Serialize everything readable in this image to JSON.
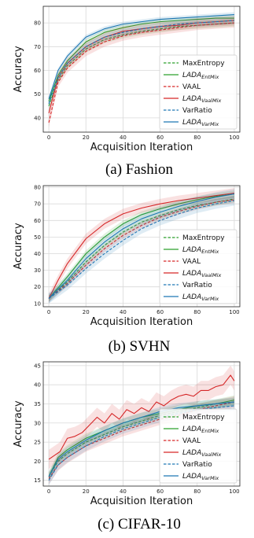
{
  "chart_data": [
    {
      "type": "line",
      "caption": "(a) Fashion",
      "xlabel": "Acquisition Iteration",
      "ylabel": "Accuracy",
      "xlim": [
        -3,
        103
      ],
      "ylim": [
        34,
        87
      ],
      "xticks": [
        0,
        20,
        40,
        60,
        80,
        100
      ],
      "yticks": [
        40,
        50,
        60,
        70,
        80
      ],
      "grid": true,
      "legend_position": "lower-right",
      "series": [
        {
          "name": "MaxEntropy",
          "tex": [
            "MaxEntropy",
            ""
          ],
          "color": "#2ca02c",
          "dash": true,
          "x": [
            0,
            5,
            10,
            20,
            30,
            40,
            50,
            60,
            70,
            80,
            90,
            100
          ],
          "y": [
            45,
            56,
            62,
            69,
            73,
            75,
            76.5,
            77.5,
            78.5,
            79,
            79.5,
            80
          ],
          "band": 1.5
        },
        {
          "name": "LADA_EntMix",
          "tex": [
            "LADA",
            "EntMix"
          ],
          "color": "#2ca02c",
          "dash": false,
          "x": [
            0,
            5,
            10,
            20,
            30,
            40,
            50,
            60,
            70,
            80,
            90,
            100
          ],
          "y": [
            47,
            58,
            64,
            72,
            76,
            78,
            79.5,
            80.5,
            81,
            81.5,
            82,
            82
          ],
          "band": 1.2
        },
        {
          "name": "VAAL",
          "tex": [
            "VAAL",
            ""
          ],
          "color": "#d62728",
          "dash": true,
          "x": [
            0,
            5,
            10,
            20,
            30,
            40,
            50,
            60,
            70,
            80,
            90,
            100
          ],
          "y": [
            38,
            55,
            61,
            68,
            72,
            74.5,
            76,
            77,
            78,
            79,
            79.5,
            80
          ],
          "band": 2
        },
        {
          "name": "LADA_VaalMix",
          "tex": [
            "LADA",
            "VaalMix"
          ],
          "color": "#d62728",
          "dash": false,
          "x": [
            0,
            5,
            10,
            20,
            30,
            40,
            50,
            60,
            70,
            80,
            90,
            100
          ],
          "y": [
            42,
            57,
            63,
            70,
            74,
            76.5,
            77.5,
            78.5,
            79,
            80,
            80.5,
            81
          ],
          "band": 2
        },
        {
          "name": "VarRatio",
          "tex": [
            "VarRatio",
            ""
          ],
          "color": "#1f77b4",
          "dash": true,
          "x": [
            0,
            5,
            10,
            20,
            30,
            40,
            50,
            60,
            70,
            80,
            90,
            100
          ],
          "y": [
            46,
            57,
            63,
            70,
            74,
            76,
            77.5,
            78.5,
            79.5,
            80,
            80.5,
            81
          ],
          "band": 1.5
        },
        {
          "name": "LADA_VarMix",
          "tex": [
            "LADA",
            "VarMix"
          ],
          "color": "#1f77b4",
          "dash": false,
          "x": [
            0,
            5,
            10,
            20,
            30,
            40,
            50,
            60,
            70,
            80,
            90,
            100
          ],
          "y": [
            48,
            60,
            66,
            74,
            77.5,
            79.5,
            80.5,
            81.5,
            82,
            82.5,
            83,
            83.5
          ],
          "band": 1
        }
      ]
    },
    {
      "type": "line",
      "caption": "(b) SVHN",
      "xlabel": "Acquisition Iteration",
      "ylabel": "Accuracy",
      "xlim": [
        -3,
        103
      ],
      "ylim": [
        8,
        81
      ],
      "xticks": [
        0,
        20,
        40,
        60,
        80,
        100
      ],
      "yticks": [
        10,
        20,
        30,
        40,
        50,
        60,
        70,
        80
      ],
      "grid": true,
      "legend_position": "lower-right",
      "series": [
        {
          "name": "MaxEntropy",
          "tex": [
            "MaxEntropy",
            ""
          ],
          "color": "#2ca02c",
          "dash": true,
          "x": [
            0,
            10,
            20,
            30,
            40,
            50,
            60,
            70,
            80,
            90,
            100
          ],
          "y": [
            13,
            23,
            35,
            45,
            53,
            59,
            63,
            66.5,
            69,
            71,
            73
          ],
          "band": 2
        },
        {
          "name": "LADA_EntMix",
          "tex": [
            "LADA",
            "EntMix"
          ],
          "color": "#2ca02c",
          "dash": false,
          "x": [
            0,
            10,
            20,
            30,
            40,
            50,
            60,
            70,
            80,
            90,
            100
          ],
          "y": [
            13,
            26,
            40,
            50,
            58,
            63.5,
            67,
            70,
            72.5,
            74.5,
            76
          ],
          "band": 2
        },
        {
          "name": "VAAL",
          "tex": [
            "VAAL",
            ""
          ],
          "color": "#d62728",
          "dash": true,
          "x": [
            0,
            10,
            20,
            30,
            40,
            50,
            60,
            70,
            80,
            90,
            100
          ],
          "y": [
            13,
            22,
            33,
            43,
            51,
            57,
            62,
            65.5,
            68.5,
            71,
            72.5
          ],
          "band": 2
        },
        {
          "name": "LADA_VaalMix",
          "tex": [
            "LADA",
            "VaalMix"
          ],
          "color": "#d62728",
          "dash": false,
          "x": [
            0,
            5,
            10,
            20,
            30,
            40,
            50,
            60,
            70,
            80,
            90,
            100
          ],
          "y": [
            13,
            24,
            34,
            49,
            58,
            64,
            67.5,
            70,
            72,
            73.5,
            75,
            76.5
          ],
          "band": 3
        },
        {
          "name": "VarRatio",
          "tex": [
            "VarRatio",
            ""
          ],
          "color": "#1f77b4",
          "dash": true,
          "x": [
            0,
            10,
            20,
            30,
            40,
            50,
            60,
            70,
            80,
            90,
            100
          ],
          "y": [
            13,
            21,
            31,
            40,
            48,
            55,
            60,
            64,
            67.5,
            70,
            72
          ],
          "band": 3
        },
        {
          "name": "LADA_VarMix",
          "tex": [
            "LADA",
            "VarMix"
          ],
          "color": "#1f77b4",
          "dash": false,
          "x": [
            0,
            10,
            20,
            30,
            40,
            50,
            60,
            70,
            80,
            90,
            100
          ],
          "y": [
            13,
            24,
            37,
            47,
            55,
            61,
            65,
            68.5,
            71.5,
            74,
            76
          ],
          "band": 3
        }
      ]
    },
    {
      "type": "line",
      "caption": "(c) CIFAR-10",
      "xlabel": "Acquisition Iteration",
      "ylabel": "Accuracy",
      "xlim": [
        -3,
        103
      ],
      "ylim": [
        13.5,
        46
      ],
      "xticks": [
        0,
        20,
        40,
        60,
        80,
        100
      ],
      "yticks": [
        15,
        20,
        25,
        30,
        35,
        40,
        45
      ],
      "grid": true,
      "legend_position": "lower-right",
      "series": [
        {
          "name": "MaxEntropy",
          "tex": [
            "MaxEntropy",
            ""
          ],
          "color": "#2ca02c",
          "dash": true,
          "x": [
            0,
            5,
            10,
            20,
            30,
            40,
            50,
            60,
            70,
            80,
            90,
            100
          ],
          "y": [
            16,
            20,
            22,
            25,
            27,
            29,
            30.5,
            32,
            33,
            34,
            35,
            35.5
          ],
          "band": 1
        },
        {
          "name": "LADA_EntMix",
          "tex": [
            "LADA",
            "EntMix"
          ],
          "color": "#2ca02c",
          "dash": false,
          "x": [
            0,
            5,
            10,
            20,
            30,
            40,
            50,
            60,
            70,
            80,
            90,
            100
          ],
          "y": [
            16,
            21,
            23,
            26,
            28,
            30,
            31.5,
            32.5,
            33.5,
            34.5,
            35,
            36
          ],
          "band": 1.2
        },
        {
          "name": "VAAL",
          "tex": [
            "VAAL",
            ""
          ],
          "color": "#d62728",
          "dash": true,
          "x": [
            0,
            5,
            10,
            20,
            30,
            40,
            50,
            60,
            70,
            80,
            90,
            100
          ],
          "y": [
            15.5,
            19,
            21,
            24,
            26,
            28,
            29.5,
            31,
            32,
            33.5,
            34.5,
            35.5
          ],
          "band": 1.5
        },
        {
          "name": "LADA_VaalMix",
          "tex": [
            "LADA",
            "VaalMix"
          ],
          "color": "#d62728",
          "dash": false,
          "x": [
            0,
            3,
            6,
            10,
            14,
            18,
            22,
            26,
            30,
            34,
            38,
            42,
            46,
            50,
            54,
            58,
            62,
            66,
            70,
            74,
            78,
            82,
            86,
            90,
            94,
            98,
            100
          ],
          "y": [
            20.5,
            21.5,
            22.5,
            26,
            26.5,
            27.5,
            29.5,
            31.5,
            30,
            32.5,
            31,
            33.5,
            32.5,
            34,
            33,
            35.5,
            34.5,
            36,
            37,
            37.5,
            37,
            38.5,
            38.5,
            39.5,
            40,
            42.5,
            41
          ],
          "band": 2.5
        },
        {
          "name": "VarRatio",
          "tex": [
            "VarRatio",
            ""
          ],
          "color": "#1f77b4",
          "dash": true,
          "x": [
            0,
            5,
            10,
            20,
            30,
            40,
            50,
            60,
            70,
            80,
            90,
            100
          ],
          "y": [
            15,
            19,
            21,
            24,
            26.5,
            28.5,
            30,
            31.5,
            32.5,
            33.5,
            34,
            34.5
          ],
          "band": 1.3
        },
        {
          "name": "LADA_VarMix",
          "tex": [
            "LADA",
            "VarMix"
          ],
          "color": "#1f77b4",
          "dash": false,
          "x": [
            0,
            5,
            10,
            20,
            30,
            40,
            50,
            60,
            70,
            80,
            90,
            100
          ],
          "y": [
            16,
            20.5,
            22.5,
            25.5,
            28,
            30,
            31.5,
            33,
            34,
            34.5,
            35,
            35.5
          ],
          "band": 1.2
        }
      ]
    }
  ]
}
